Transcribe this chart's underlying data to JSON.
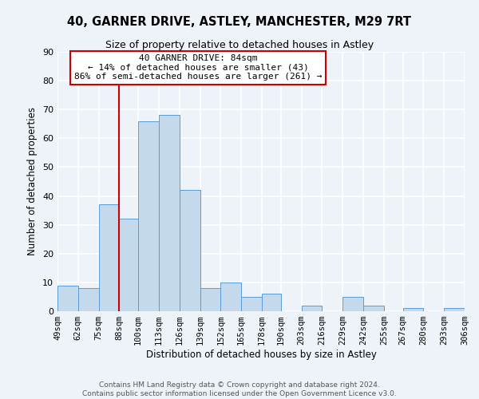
{
  "title": "40, GARNER DRIVE, ASTLEY, MANCHESTER, M29 7RT",
  "subtitle": "Size of property relative to detached houses in Astley",
  "xlabel": "Distribution of detached houses by size in Astley",
  "ylabel": "Number of detached properties",
  "bar_left_edges": [
    49,
    62,
    75,
    88,
    100,
    113,
    126,
    139,
    152,
    165,
    178,
    190,
    203,
    216,
    229,
    242,
    255,
    267,
    280,
    293
  ],
  "bar_widths": [
    13,
    13,
    13,
    12,
    13,
    13,
    13,
    13,
    13,
    13,
    12,
    13,
    13,
    13,
    13,
    13,
    12,
    13,
    13,
    13
  ],
  "bar_heights": [
    9,
    8,
    37,
    32,
    66,
    68,
    42,
    8,
    10,
    5,
    6,
    0,
    2,
    0,
    5,
    2,
    0,
    1,
    0,
    1
  ],
  "bar_color": "#c5d9ed",
  "bar_edgecolor": "#5b9bd5",
  "xlim_left": 49,
  "xlim_right": 306,
  "ylim_top": 90,
  "yticks": [
    0,
    10,
    20,
    30,
    40,
    50,
    60,
    70,
    80,
    90
  ],
  "xtick_labels": [
    "49sqm",
    "62sqm",
    "75sqm",
    "88sqm",
    "100sqm",
    "113sqm",
    "126sqm",
    "139sqm",
    "152sqm",
    "165sqm",
    "178sqm",
    "190sqm",
    "203sqm",
    "216sqm",
    "229sqm",
    "242sqm",
    "255sqm",
    "267sqm",
    "280sqm",
    "293sqm",
    "306sqm"
  ],
  "xtick_positions": [
    49,
    62,
    75,
    88,
    100,
    113,
    126,
    139,
    152,
    165,
    178,
    190,
    203,
    216,
    229,
    242,
    255,
    267,
    280,
    293,
    306
  ],
  "vline_x": 88,
  "vline_color": "#cc0000",
  "annotation_title": "40 GARNER DRIVE: 84sqm",
  "annotation_line1": "← 14% of detached houses are smaller (43)",
  "annotation_line2": "86% of semi-detached houses are larger (261) →",
  "annotation_box_color": "#ffffff",
  "annotation_box_edgecolor": "#cc0000",
  "footer1": "Contains HM Land Registry data © Crown copyright and database right 2024.",
  "footer2": "Contains public sector information licensed under the Open Government Licence v3.0.",
  "background_color": "#eef2f9",
  "grid_color": "#ffffff",
  "title_fontsize": 10.5,
  "subtitle_fontsize": 9,
  "axis_label_fontsize": 8.5,
  "tick_fontsize": 7.5,
  "footer_fontsize": 6.5,
  "annotation_fontsize": 8
}
